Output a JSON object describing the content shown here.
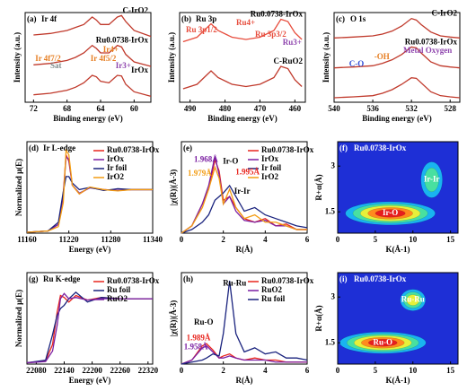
{
  "chart_data": [
    {
      "type": "line",
      "label": "(a)",
      "title": "Ir 4f",
      "xlabel": "Binding energy (eV)",
      "ylabel": "Intensity (a.u.)",
      "xlim": [
        73,
        58
      ],
      "xticks": [
        72,
        68,
        64,
        60
      ],
      "ylim": [
        0,
        3
      ],
      "x": [
        72,
        70,
        68,
        67,
        66,
        65,
        64.5,
        64,
        63,
        62,
        61.5,
        61,
        60,
        58
      ],
      "series": [
        {
          "name": "C-IrO2",
          "color": "#c0392b",
          "values": [
            2.25,
            2.3,
            2.4,
            2.5,
            2.6,
            2.85,
            2.75,
            2.6,
            2.6,
            2.85,
            2.9,
            2.7,
            2.4,
            2.2
          ]
        },
        {
          "name": "Ru0.0738-IrOx",
          "color": "#c0392b",
          "values": [
            1.25,
            1.3,
            1.4,
            1.5,
            1.65,
            1.9,
            1.8,
            1.65,
            1.65,
            1.9,
            1.85,
            1.6,
            1.35,
            1.2
          ]
        },
        {
          "name": "IrOx",
          "color": "#c0392b",
          "values": [
            0.25,
            0.3,
            0.4,
            0.5,
            0.65,
            0.9,
            0.85,
            0.7,
            0.65,
            0.9,
            0.88,
            0.6,
            0.35,
            0.2
          ]
        }
      ],
      "annotations": [
        {
          "text": "Ir 4f7/2",
          "color": "#e67e22"
        },
        {
          "text": "Ir 4f5/2",
          "color": "#e67e22"
        },
        {
          "text": "Sat",
          "color": "#7f8c8d"
        },
        {
          "text": "Ir4+",
          "color": "#e67e22"
        },
        {
          "text": "Ir3+",
          "color": "#8e44ad"
        }
      ]
    },
    {
      "type": "line",
      "label": "(b)",
      "title": "Ru 3p",
      "xlabel": "Binding energy (eV)",
      "ylabel": "Intensity (a.u.)",
      "xlim": [
        493,
        457
      ],
      "xticks": [
        490,
        480,
        470,
        460
      ],
      "ylim": [
        0,
        2
      ],
      "x": [
        492,
        488,
        486,
        484,
        482,
        478,
        474,
        470,
        466,
        464,
        462,
        460,
        458
      ],
      "series": [
        {
          "name": "Ru0.0738-IrOx",
          "color": "#e74c3c",
          "values": [
            1.35,
            1.45,
            1.6,
            1.75,
            1.6,
            1.45,
            1.4,
            1.45,
            1.6,
            1.85,
            1.8,
            1.55,
            1.4
          ]
        },
        {
          "name": "C-RuO2",
          "color": "#c0392b",
          "values": [
            0.3,
            0.4,
            0.55,
            0.7,
            0.55,
            0.4,
            0.35,
            0.4,
            0.55,
            0.8,
            0.75,
            0.5,
            0.35
          ]
        }
      ],
      "annotations": [
        {
          "text": "Ru 3p1/2",
          "color": "#e74c3c"
        },
        {
          "text": "Ru 3p3/2",
          "color": "#e74c3c"
        },
        {
          "text": "Ru4+",
          "color": "#e74c3c"
        },
        {
          "text": "Ru3+",
          "color": "#8e44ad"
        }
      ]
    },
    {
      "type": "line",
      "label": "(c)",
      "title": "O 1s",
      "xlabel": "Binding energy (eV)",
      "ylabel": "Intensity (a.u.)",
      "xlim": [
        540,
        527
      ],
      "xticks": [
        540,
        536,
        532,
        528
      ],
      "ylim": [
        0,
        3
      ],
      "x": [
        540,
        538,
        536,
        535,
        534,
        533,
        532,
        531.5,
        531,
        530,
        529,
        528,
        527
      ],
      "series": [
        {
          "name": "C-IrO2",
          "color": "#c0392b",
          "values": [
            2.15,
            2.18,
            2.22,
            2.28,
            2.38,
            2.55,
            2.8,
            2.75,
            2.6,
            2.35,
            2.22,
            2.18,
            2.15
          ]
        },
        {
          "name": "Ru0.0738-IrOx",
          "color": "#c0392b",
          "values": [
            1.15,
            1.18,
            1.22,
            1.3,
            1.42,
            1.6,
            1.85,
            1.82,
            1.65,
            1.35,
            1.22,
            1.18,
            1.15
          ]
        },
        {
          "color": "#c0392b",
          "values": [
            0.15,
            0.18,
            0.22,
            0.3,
            0.42,
            0.6,
            0.82,
            0.8,
            0.65,
            0.35,
            0.22,
            0.18,
            0.15
          ]
        }
      ],
      "annotations": [
        {
          "text": "-OH",
          "color": "#e67e22"
        },
        {
          "text": "C-O",
          "color": "#2e4bd6"
        },
        {
          "text": "Metal Oxygen",
          "color": "#8e44ad"
        }
      ]
    },
    {
      "type": "line",
      "label": "(d)",
      "title": "Ir L-edge",
      "xlabel": "Energy (eV)",
      "ylabel": "Normalized μ(E)",
      "xlim": [
        11160,
        11340
      ],
      "xticks": [
        11160,
        11220,
        11280,
        11340
      ],
      "ylim": [
        0,
        2.1
      ],
      "legend": "upper right",
      "x": [
        11160,
        11190,
        11205,
        11212,
        11216,
        11220,
        11225,
        11235,
        11250,
        11270,
        11290,
        11310,
        11340
      ],
      "series": [
        {
          "name": "Ru0.0738-IrOx",
          "color": "#e8251e",
          "values": [
            0.02,
            0.05,
            0.2,
            0.9,
            1.8,
            1.65,
            1.1,
            0.9,
            1.05,
            1.0,
            0.98,
            1.0,
            1.0
          ]
        },
        {
          "name": "IrOx",
          "color": "#7b1fa2",
          "values": [
            0.02,
            0.05,
            0.2,
            0.85,
            1.75,
            1.7,
            1.1,
            0.92,
            1.04,
            1.0,
            0.98,
            1.0,
            1.0
          ]
        },
        {
          "name": "Ir foil",
          "color": "#1a237e",
          "values": [
            0.02,
            0.05,
            0.25,
            0.95,
            1.3,
            1.3,
            1.15,
            1.0,
            1.05,
            0.98,
            1.02,
            1.0,
            1.0
          ]
        },
        {
          "name": "IrO2",
          "color": "#f39c12",
          "values": [
            0.02,
            0.05,
            0.15,
            0.7,
            1.9,
            1.8,
            1.1,
            0.9,
            1.06,
            1.0,
            0.97,
            1.0,
            1.0
          ]
        }
      ]
    },
    {
      "type": "line",
      "label": "(e)",
      "xlabel": "R(Å)",
      "ylabel": "|χ(R)|(Å-3)",
      "xlim": [
        0,
        6
      ],
      "xticks": [
        0,
        2,
        4,
        6
      ],
      "ylim": [
        0,
        2.5
      ],
      "legend": "upper right",
      "x": [
        0,
        0.5,
        1,
        1.3,
        1.6,
        1.8,
        2.0,
        2.3,
        2.6,
        3.0,
        3.5,
        4,
        4.5,
        5,
        5.5,
        6
      ],
      "series": [
        {
          "name": "Ru0.0738-IrOx",
          "color": "#e8251e",
          "values": [
            0,
            0.2,
            0.8,
            1.2,
            2.0,
            1.7,
            0.9,
            1.0,
            0.7,
            0.4,
            0.3,
            0.4,
            0.2,
            0.25,
            0.1,
            0.1
          ]
        },
        {
          "name": "IrOx",
          "color": "#7b1fa2",
          "values": [
            0,
            0.2,
            0.8,
            1.3,
            2.1,
            1.6,
            0.8,
            1.0,
            0.6,
            0.35,
            0.3,
            0.35,
            0.2,
            0.2,
            0.1,
            0.1
          ]
        },
        {
          "name": "Ir foil",
          "color": "#1a237e",
          "values": [
            0,
            0.1,
            0.3,
            0.5,
            0.9,
            1.0,
            1.1,
            1.3,
            1.0,
            0.6,
            0.7,
            0.5,
            0.4,
            0.3,
            0.2,
            0.15
          ]
        },
        {
          "name": "IrO2",
          "color": "#f39c12",
          "values": [
            0,
            0.2,
            0.7,
            1.2,
            1.8,
            1.5,
            0.8,
            1.2,
            0.7,
            0.4,
            0.5,
            0.3,
            0.3,
            0.2,
            0.1,
            0.1
          ]
        }
      ],
      "annotations": [
        {
          "text": "Ir-O",
          "color": "#000000"
        },
        {
          "text": "Ir-Ir",
          "color": "#000000"
        },
        {
          "text": "1.968Å",
          "color": "#7b1fa2"
        },
        {
          "text": "1.979Å",
          "color": "#f39c12"
        },
        {
          "text": "1.995Å",
          "color": "#e8251e"
        }
      ]
    },
    {
      "type": "contour",
      "label": "(f)",
      "title": "Ru0.0738-IrOx",
      "xlabel": "K(Å-1)",
      "ylabel": "R+α(Å)",
      "xlim": [
        0,
        16
      ],
      "xticks": [
        0,
        5,
        10,
        15
      ],
      "ylim": [
        0.8,
        3.8
      ],
      "yticks": [
        1.5,
        3.0
      ],
      "colormap": [
        "#1e2fd6",
        "#19b4f0",
        "#48e0a0",
        "#e6f03a",
        "#ff8a1e",
        "#e61e1e"
      ],
      "peaks": [
        {
          "label": "Ir-O",
          "x": 7,
          "y": 1.45,
          "intensity": 1.0
        },
        {
          "label": "Ir-Ir",
          "x": 12.5,
          "y": 2.55,
          "intensity": 0.45
        }
      ]
    },
    {
      "type": "line",
      "label": "(g)",
      "title": "Ru K-edge",
      "xlabel": "Energy (eV)",
      "ylabel": "Normalized μ(E)",
      "xlim": [
        22060,
        22330
      ],
      "xticks": [
        22080,
        22140,
        22200,
        22260,
        22320
      ],
      "ylim": [
        0,
        1.4
      ],
      "legend": "upper right",
      "x": [
        22060,
        22100,
        22115,
        22125,
        22132,
        22140,
        22150,
        22165,
        22190,
        22220,
        22260,
        22300,
        22330
      ],
      "series": [
        {
          "name": "Ru0.0738-IrOx",
          "color": "#e8251e",
          "values": [
            0.02,
            0.05,
            0.3,
            0.8,
            1.05,
            1.02,
            0.95,
            1.05,
            0.98,
            1.02,
            1.0,
            1.0,
            1.0
          ]
        },
        {
          "name": "Ru foil",
          "color": "#1a237e",
          "values": [
            0.02,
            0.06,
            0.45,
            0.75,
            0.85,
            0.9,
            1.0,
            1.1,
            0.95,
            1.02,
            1.0,
            1.0,
            1.0
          ]
        },
        {
          "name": "RuO2",
          "color": "#7b1fa2",
          "values": [
            0.02,
            0.04,
            0.2,
            0.6,
            1.0,
            1.08,
            1.0,
            1.02,
            0.98,
            1.0,
            1.0,
            1.0,
            1.0
          ]
        }
      ]
    },
    {
      "type": "line",
      "label": "(h)",
      "xlabel": "R(Å)",
      "ylabel": "|χ(R)|(Å-3)",
      "xlim": [
        0,
        6
      ],
      "xticks": [
        0,
        2,
        4,
        6
      ],
      "ylim": [
        0,
        4.5
      ],
      "legend": "upper right",
      "x": [
        0,
        0.5,
        1,
        1.2,
        1.5,
        1.8,
        2,
        2.3,
        2.6,
        3,
        3.5,
        4,
        4.5,
        5,
        5.5,
        6
      ],
      "series": [
        {
          "name": "Ru0.0738-IrOx",
          "color": "#e8251e",
          "values": [
            0,
            0.2,
            0.9,
            1.0,
            0.7,
            0.3,
            0.4,
            0.5,
            0.3,
            0.2,
            0.3,
            0.2,
            0.2,
            0.1,
            0.1,
            0.1
          ]
        },
        {
          "name": "RuO2",
          "color": "#7b1fa2",
          "values": [
            0,
            0.2,
            0.8,
            0.9,
            0.6,
            0.3,
            0.3,
            0.4,
            0.3,
            0.2,
            0.2,
            0.2,
            0.1,
            0.1,
            0.1,
            0.1
          ]
        },
        {
          "name": "Ru foil",
          "color": "#1a237e",
          "values": [
            0,
            0.1,
            0.2,
            0.3,
            0.5,
            0.4,
            1.5,
            4.1,
            1.5,
            0.6,
            0.8,
            0.5,
            0.6,
            0.3,
            0.3,
            0.2
          ]
        }
      ],
      "annotations": [
        {
          "text": "Ru-Ru",
          "color": "#000000"
        },
        {
          "text": "Ru-O",
          "color": "#000000"
        },
        {
          "text": "1.989Å",
          "color": "#e8251e"
        },
        {
          "text": "1.958Å",
          "color": "#7b1fa2"
        }
      ]
    },
    {
      "type": "contour",
      "label": "(i)",
      "title": "Ru0.0738-IrOx",
      "xlabel": "K(Å-1)",
      "ylabel": "R+α(Å)",
      "xlim": [
        0,
        16
      ],
      "xticks": [
        0,
        5,
        10,
        15
      ],
      "ylim": [
        0.8,
        3.8
      ],
      "yticks": [
        1.5,
        3.0
      ],
      "colormap": [
        "#1e2fd6",
        "#19b4f0",
        "#48e0a0",
        "#e6f03a",
        "#ff8a1e",
        "#e61e1e"
      ],
      "peaks": [
        {
          "label": "Ru-O",
          "x": 6,
          "y": 1.5,
          "intensity": 1.0
        },
        {
          "label": "Ru-Ru",
          "x": 10,
          "y": 2.9,
          "intensity": 0.5
        }
      ]
    }
  ]
}
